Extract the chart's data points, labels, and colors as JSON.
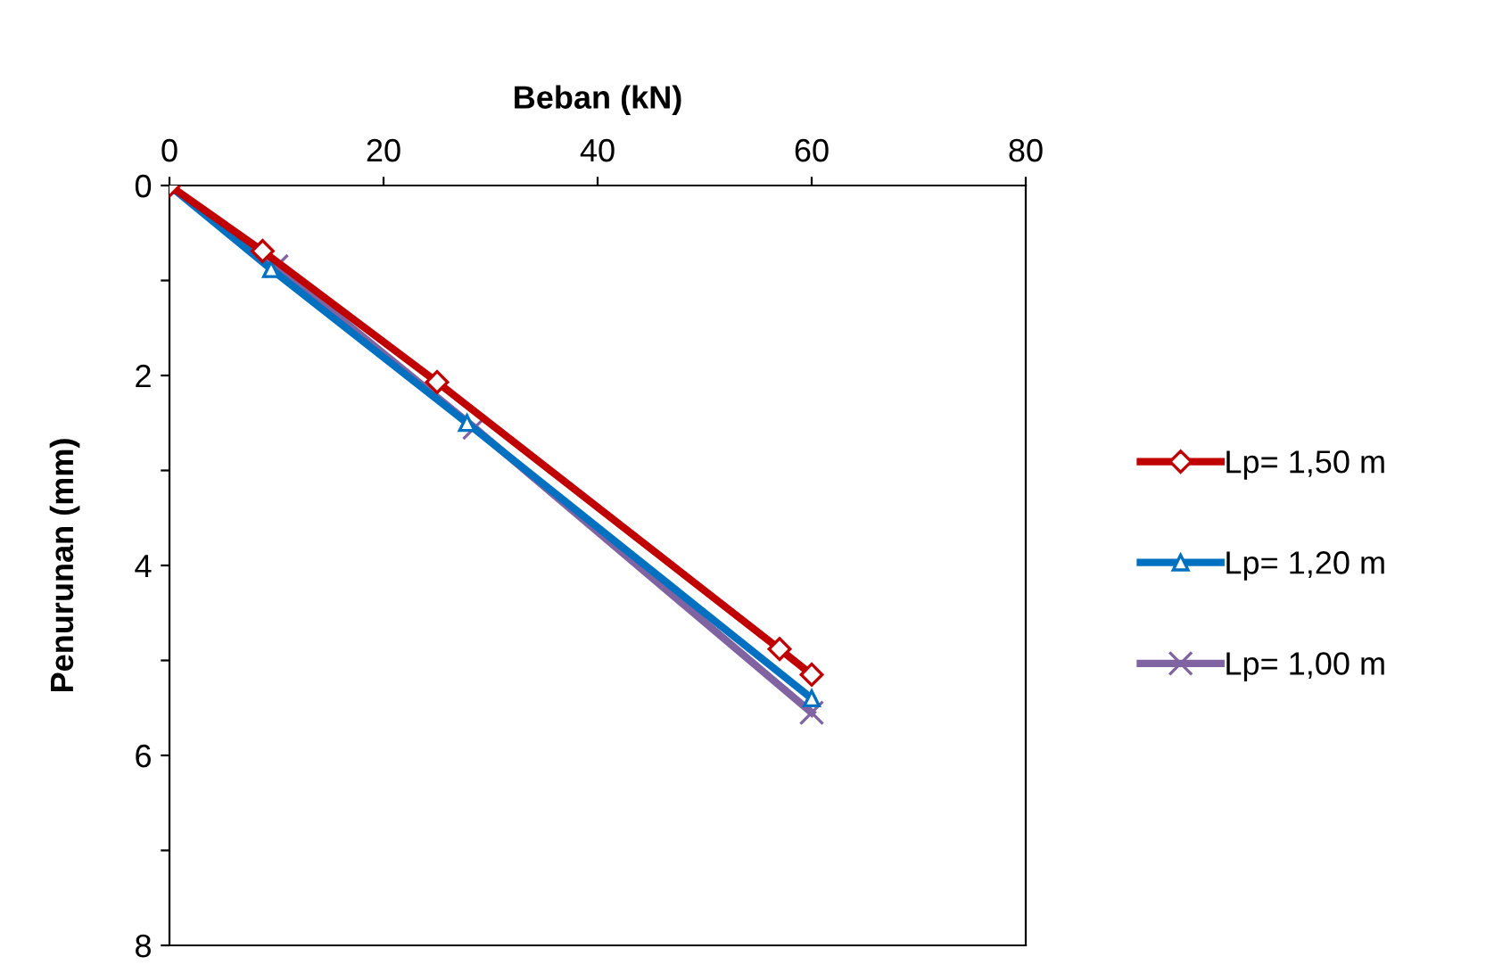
{
  "chart_data": {
    "type": "line",
    "xlabel": "Beban (kN)",
    "ylabel": "Penurunan (mm)",
    "xlim": [
      0,
      80
    ],
    "xticks": [
      0,
      20,
      40,
      60,
      80
    ],
    "ylim": [
      8,
      0
    ],
    "yticks": [
      0,
      {
        "value": 1,
        "label": null
      },
      2,
      {
        "value": 3,
        "label": null
      },
      4,
      {
        "value": 5,
        "label": null
      },
      6,
      {
        "value": 7,
        "label": null
      },
      8
    ],
    "grid": false,
    "legend": "right",
    "series": [
      {
        "name": "Lp= 1,50 m",
        "color": "#c00000",
        "marker": "diamond",
        "x": [
          0,
          8.7,
          25,
          57,
          60
        ],
        "values": [
          0,
          0.69,
          2.07,
          4.88,
          5.15
        ]
      },
      {
        "name": "Lp= 1,20 m",
        "color": "#0070c0",
        "marker": "triangle",
        "x": [
          0,
          9.5,
          27.8,
          60
        ],
        "values": [
          0,
          0.88,
          2.5,
          5.4
        ]
      },
      {
        "name": "Lp= 1,00 m",
        "color": "#8064a2",
        "marker": "cross",
        "x": [
          0,
          10,
          28.5,
          60
        ],
        "values": [
          0,
          0.85,
          2.55,
          5.55
        ]
      }
    ]
  }
}
